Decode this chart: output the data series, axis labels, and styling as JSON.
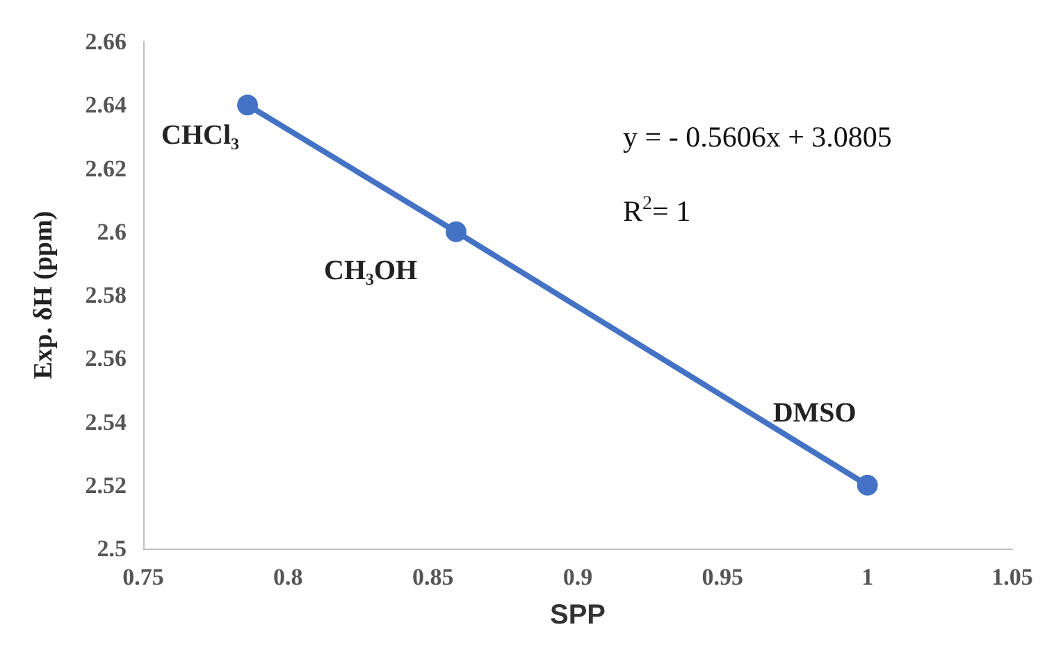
{
  "chart_data": {
    "type": "line",
    "xlabel": "SPP",
    "ylabel": "Exp. δH (ppm)",
    "x": [
      0.786,
      0.858,
      1.0
    ],
    "series": [
      {
        "color": "#4472c4",
        "values": [
          2.64,
          2.6,
          2.52
        ]
      }
    ],
    "xlim": [
      0.75,
      1.05
    ],
    "xticks": [
      0.75,
      0.8,
      0.85,
      0.9,
      0.95,
      1,
      1.05
    ],
    "ylim": [
      2.5,
      2.66
    ],
    "yticks": [
      2.5,
      2.52,
      2.54,
      2.56,
      2.58,
      2.6,
      2.62,
      2.64,
      2.66
    ],
    "grid": false,
    "marker": "circle",
    "line_style": "solid",
    "annotations": [
      {
        "text": "CHCl₃",
        "x": 0.786,
        "y": 2.64
      },
      {
        "text": "CH₃OH",
        "x": 0.858,
        "y": 2.6
      },
      {
        "text": "DMSO",
        "x": 1.0,
        "y": 2.52
      },
      "y = - 0.5606x + 3.0805",
      "R$^{2}$= 1"
    ]
  }
}
